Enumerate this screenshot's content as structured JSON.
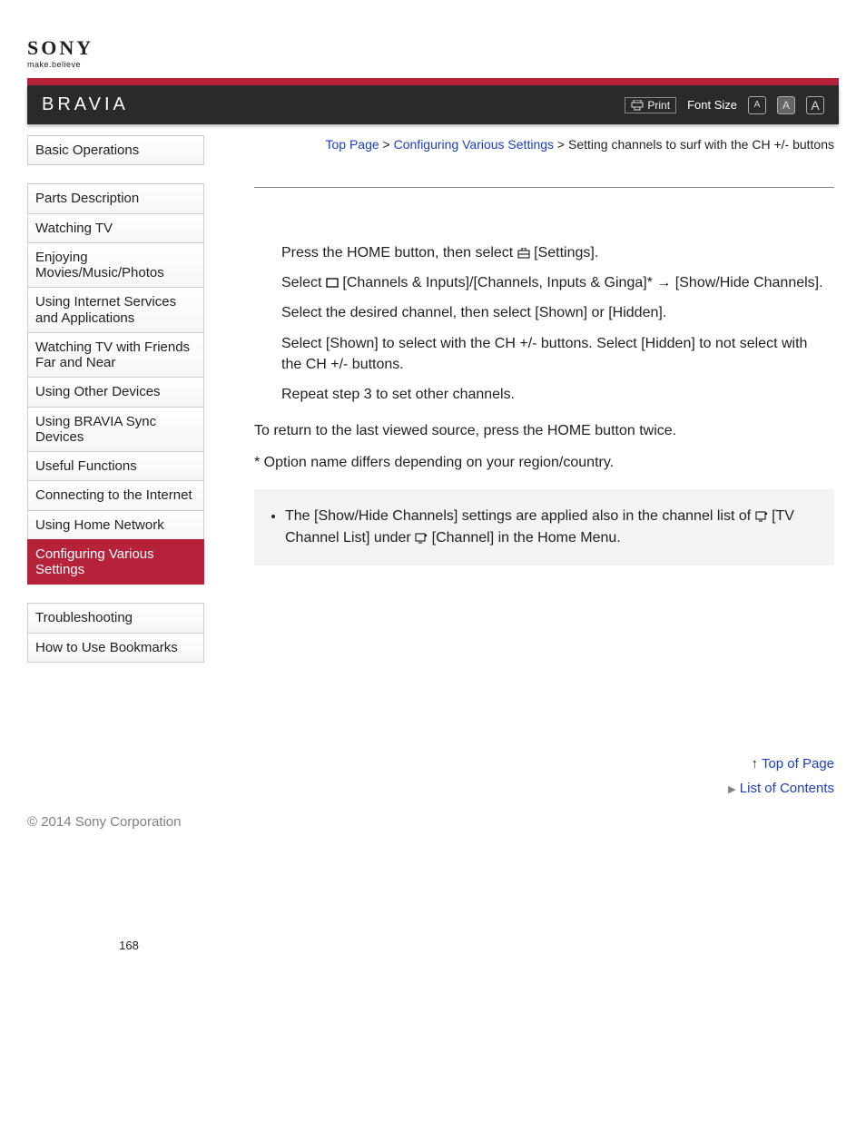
{
  "logo": {
    "brand": "SONY",
    "tagline": "make.believe"
  },
  "header": {
    "product": "BRAVIA",
    "print_label": "Print",
    "font_size_label": "Font Size",
    "font_size_glyphs": [
      "A",
      "A",
      "A"
    ]
  },
  "sidebar": {
    "group1": [
      "Basic Operations"
    ],
    "group2": [
      "Parts Description",
      "Watching TV",
      "Enjoying Movies/Music/Photos",
      "Using Internet Services and Applications",
      "Watching TV with Friends Far and Near",
      "Using Other Devices",
      "Using BRAVIA Sync Devices",
      "Useful Functions",
      "Connecting to the Internet",
      "Using Home Network",
      "Configuring Various Settings"
    ],
    "group3": [
      "Troubleshooting",
      "How to Use Bookmarks"
    ],
    "active_index_group2": 10
  },
  "breadcrumb": {
    "links": [
      "Top Page",
      "Configuring Various Settings"
    ],
    "current": "Setting channels to surf with the CH +/- buttons",
    "sep": ">"
  },
  "steps": {
    "s1a": "Press the HOME button, then select ",
    "s1b": " [Settings].",
    "s2a": "Select ",
    "s2b": " [Channels & Inputs]/[Channels, Inputs & Ginga]* → [Show/Hide Channels].",
    "s3": "Select the desired channel, then select [Shown] or [Hidden].",
    "s4": "Select [Shown] to select with the CH +/- buttons. Select [Hidden] to not select with the CH +/- buttons.",
    "s5": "Repeat step 3 to set other channels."
  },
  "return_txt": "To return to the last viewed source, press the HOME button twice.",
  "footnote": "* Option name differs depending on your region/country.",
  "tip": {
    "a": "The [Show/Hide Channels] settings are applied also in the channel list of ",
    "b": " [TV Channel List] under ",
    "c": " [Channel] in the Home Menu."
  },
  "bottom": {
    "top_of_page": "Top of Page",
    "list_of_contents": "List of Contents",
    "copyright": "© 2014 Sony Corporation",
    "page_number": "168"
  },
  "colors": {
    "accent_red": "#b6223a",
    "link_blue": "#1a3fc7",
    "bar_bg": "#2a2a2a",
    "tips_bg": "#f3f3f3"
  }
}
